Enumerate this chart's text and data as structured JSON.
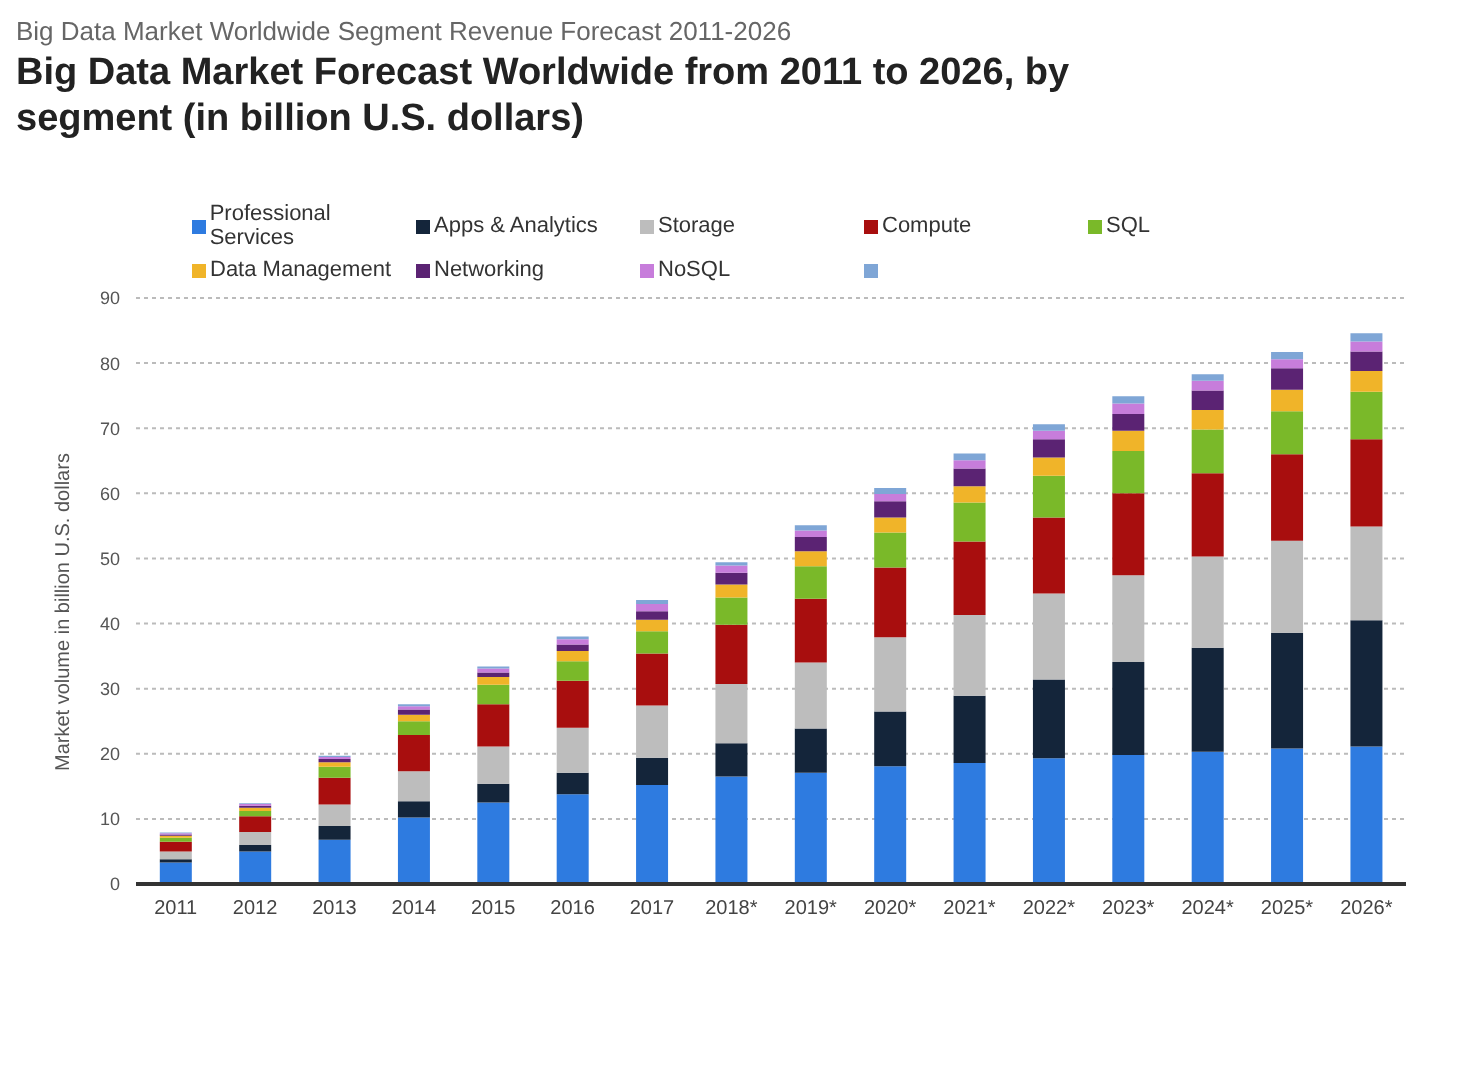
{
  "chart_data": {
    "type": "bar",
    "stacked": true,
    "subtitle": "Big Data Market Worldwide Segment Revenue Forecast 2011-2026",
    "title": "Big Data Market Forecast Worldwide from 2011 to 2026, by segment (in billion U.S. dollars)",
    "ylabel": "Market volume in billion U.S. dollars",
    "categories": [
      "2011",
      "2012",
      "2013",
      "2014",
      "2015",
      "2016",
      "2017",
      "2018*",
      "2019*",
      "2020*",
      "2021*",
      "2022*",
      "2023*",
      "2024*",
      "2025*",
      "2026*"
    ],
    "series": [
      {
        "name": "Professional Services",
        "color": "#2e7be0",
        "values": [
          3.3,
          5.0,
          6.8,
          10.2,
          12.5,
          13.8,
          15.2,
          16.5,
          17.1,
          18.1,
          18.6,
          19.3,
          19.8,
          20.3,
          20.8,
          21.1
        ]
      },
      {
        "name": "Apps & Analytics",
        "color": "#14253a",
        "values": [
          0.5,
          1.0,
          2.1,
          2.5,
          2.9,
          3.3,
          4.2,
          5.1,
          6.8,
          8.4,
          10.3,
          12.1,
          14.3,
          16.0,
          17.8,
          19.4
        ]
      },
      {
        "name": "Storage",
        "color": "#bdbdbd",
        "values": [
          1.2,
          2.0,
          3.3,
          4.6,
          5.7,
          6.9,
          8.0,
          9.1,
          10.1,
          11.4,
          12.4,
          13.2,
          13.3,
          14.0,
          14.1,
          14.4
        ]
      },
      {
        "name": "Compute",
        "color": "#a80e0e",
        "values": [
          1.5,
          2.4,
          4.1,
          5.6,
          6.5,
          7.2,
          8.0,
          9.1,
          9.8,
          10.7,
          11.3,
          11.7,
          12.6,
          12.8,
          13.3,
          13.4
        ]
      },
      {
        "name": "SQL",
        "color": "#7ab929",
        "values": [
          0.6,
          0.8,
          1.7,
          2.1,
          3.0,
          3.0,
          3.4,
          4.2,
          5.0,
          5.4,
          6.0,
          6.4,
          6.5,
          6.7,
          6.6,
          7.3
        ]
      },
      {
        "name": "Data Management",
        "color": "#f0b429",
        "values": [
          0.3,
          0.5,
          0.7,
          1.0,
          1.2,
          1.6,
          1.8,
          2.0,
          2.3,
          2.3,
          2.5,
          2.8,
          3.1,
          3.0,
          3.3,
          3.2
        ]
      },
      {
        "name": "Networking",
        "color": "#5b2373",
        "values": [
          0.2,
          0.3,
          0.5,
          0.8,
          0.7,
          1.0,
          1.3,
          1.8,
          2.2,
          2.5,
          2.7,
          2.8,
          2.6,
          3.0,
          3.3,
          3.0
        ]
      },
      {
        "name": "NoSQL",
        "color": "#c77ddb",
        "values": [
          0.2,
          0.3,
          0.3,
          0.5,
          0.6,
          0.8,
          1.1,
          1.1,
          1.0,
          1.1,
          1.3,
          1.3,
          1.6,
          1.5,
          1.4,
          1.5
        ]
      },
      {
        "color": "#7fa6d6",
        "values": [
          0.1,
          0.1,
          0.2,
          0.3,
          0.3,
          0.4,
          0.6,
          0.5,
          0.8,
          0.9,
          1.0,
          1.0,
          1.1,
          1.0,
          1.1,
          1.3
        ]
      }
    ],
    "ylim": [
      0,
      90
    ],
    "yticks": [
      0,
      10,
      20,
      30,
      40,
      50,
      60,
      70,
      80,
      90
    ],
    "grid": "y",
    "legend": "top left"
  }
}
